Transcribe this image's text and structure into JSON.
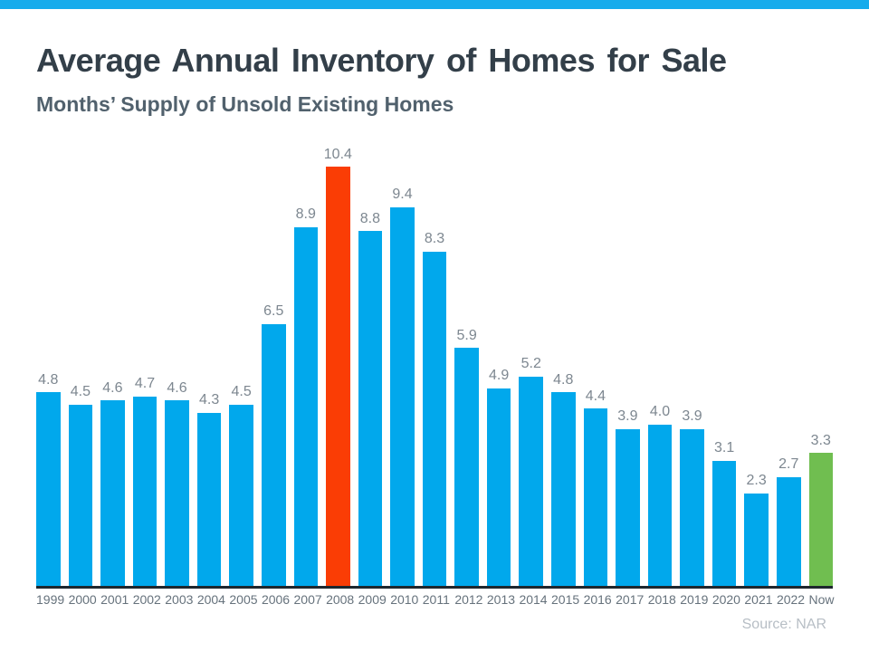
{
  "header": {
    "title": "Average Annual Inventory of Homes for Sale",
    "subtitle": "Months’ Supply of Unsold Existing Homes"
  },
  "footer": {
    "source": "Source: NAR"
  },
  "chart_data": {
    "type": "bar",
    "title": "Average Annual Inventory of Homes for Sale",
    "subtitle": "Months’ Supply of Unsold Existing Homes",
    "categories": [
      "1999",
      "2000",
      "2001",
      "2002",
      "2003",
      "2004",
      "2005",
      "2006",
      "2007",
      "2008",
      "2009",
      "2010",
      "2011",
      "2012",
      "2013",
      "2014",
      "2015",
      "2016",
      "2017",
      "2018",
      "2019",
      "2020",
      "2021",
      "2022",
      "Now"
    ],
    "values": [
      4.8,
      4.5,
      4.6,
      4.7,
      4.6,
      4.3,
      4.5,
      6.5,
      8.9,
      10.4,
      8.8,
      9.4,
      8.3,
      5.9,
      4.9,
      5.2,
      4.8,
      4.4,
      3.9,
      4.0,
      3.9,
      3.1,
      2.3,
      2.7,
      3.3
    ],
    "value_labels": [
      "4.8",
      "4.5",
      "4.6",
      "4.7",
      "4.6",
      "4.3",
      "4.5",
      "6.5",
      "8.9",
      "10.4",
      "8.8",
      "9.4",
      "8.3",
      "5.9",
      "4.9",
      "5.2",
      "4.8",
      "4.4",
      "3.9",
      "4.0",
      "3.9",
      "3.1",
      "2.3",
      "2.7",
      "3.3"
    ],
    "xlabel": "",
    "ylabel": "",
    "ylim": [
      0,
      10.4
    ],
    "grid": false,
    "legend": false,
    "data_labels": true,
    "bar_color_default": "#01A8EC",
    "highlights": {
      "2008": "#FA3D05",
      "Now": "#70BE50"
    },
    "source": "Source: NAR"
  },
  "theme": {
    "top_strip_color": "#17ACEC",
    "title_color": "#333F49",
    "subtitle_color": "#51616D",
    "value_label_color": "#7D8790",
    "axis_line_color": "#1E272E",
    "year_label_color": "#66727C",
    "source_color": "#B7BEC5",
    "background": "#FFFFFF"
  }
}
